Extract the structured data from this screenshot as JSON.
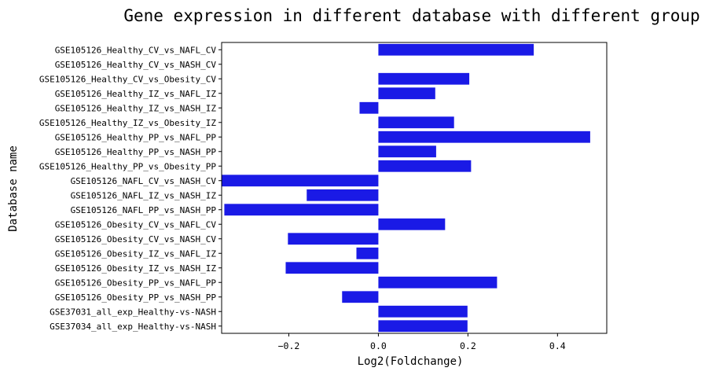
{
  "chart_data": {
    "type": "bar",
    "orientation": "horizontal",
    "title": "Gene expression in different database with different group",
    "xlabel": "Log2(Foldchange)",
    "ylabel": "Database name",
    "xlim": [
      -0.35,
      0.51
    ],
    "xticks": [
      -0.2,
      0.0,
      0.2,
      0.4
    ],
    "xtick_labels": [
      "−0.2",
      "0.0",
      "0.2",
      "0.4"
    ],
    "bar_color": "#1a1ae6",
    "categories": [
      "GSE105126_Healthy_CV_vs_NAFL_CV",
      "GSE105126_Healthy_CV_vs_NASH_CV",
      "GSE105126_Healthy_CV_vs_Obesity_CV",
      "GSE105126_Healthy_IZ_vs_NAFL_IZ",
      "GSE105126_Healthy_IZ_vs_NASH_IZ",
      "GSE105126_Healthy_IZ_vs_Obesity_IZ",
      "GSE105126_Healthy_PP_vs_NAFL_PP",
      "GSE105126_Healthy_PP_vs_NASH_PP",
      "GSE105126_Healthy_PP_vs_Obesity_PP",
      "GSE105126_NAFL_CV_vs_NASH_CV",
      "GSE105126_NAFL_IZ_vs_NASH_IZ",
      "GSE105126_NAFL_PP_vs_NASH_PP",
      "GSE105126_Obesity_CV_vs_NAFL_CV",
      "GSE105126_Obesity_CV_vs_NASH_CV",
      "GSE105126_Obesity_IZ_vs_NAFL_IZ",
      "GSE105126_Obesity_IZ_vs_NASH_IZ",
      "GSE105126_Obesity_PP_vs_NAFL_PP",
      "GSE105126_Obesity_PP_vs_NASH_PP",
      "GSE37031_all_exp_Healthy-vs-NASH",
      "GSE37034_all_exp_Healthy-vs-NASH"
    ],
    "values": [
      0.347,
      0.0,
      0.203,
      0.127,
      -0.042,
      0.169,
      0.473,
      0.129,
      0.207,
      -0.35,
      -0.16,
      -0.344,
      0.149,
      -0.202,
      -0.049,
      -0.207,
      0.265,
      -0.081,
      0.199,
      0.199
    ],
    "grid": false,
    "legend": "none"
  }
}
